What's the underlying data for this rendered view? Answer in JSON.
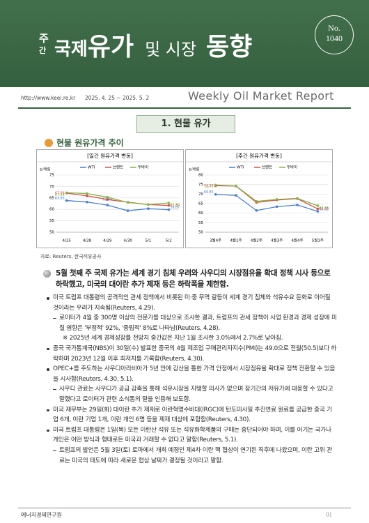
{
  "header": {
    "prefix": [
      "주",
      "간"
    ],
    "title_parts": [
      "국제",
      "유가",
      "및 시장",
      "동향"
    ],
    "badge": [
      "No.",
      "1040"
    ],
    "url": "http://www.keei.re.kr",
    "period": "2025. 4. 25 ~ 2025. 5. 2",
    "english_title": "Weekly Oil Market Report"
  },
  "section": {
    "title": "1. 현물 유가",
    "subtitle": "현물 원유가격 추이"
  },
  "chart_data": [
    {
      "type": "line",
      "title": "[일간 원유가격 변동]",
      "y_label": "$/배럴",
      "categories": [
        "4/25",
        "4/28",
        "4/29",
        "4/30",
        "5/1",
        "5/2"
      ],
      "ylim": [
        50,
        75
      ],
      "yticks": [
        50,
        55,
        60,
        65,
        70,
        75
      ],
      "grid": true,
      "series": [
        {
          "name": "WTI",
          "color": "#4a7fd0",
          "values": [
            63.85,
            63.2,
            61.86,
            59.4,
            60.3,
            59.87
          ],
          "value_labels": [
            "63.85",
            null,
            "61.86",
            null,
            null,
            "59.87"
          ]
        },
        {
          "name": "브렌트",
          "color": "#d0504a",
          "values": [
            67.08,
            65.9,
            64.3,
            63.1,
            62.1,
            61.69
          ],
          "value_labels": [
            "67.08",
            null,
            null,
            null,
            null,
            "61.69"
          ]
        },
        {
          "name": "두바이",
          "color": "#8ab04a",
          "values": [
            67.26,
            66.9,
            65.3,
            63.0,
            62.1,
            62.8
          ],
          "value_labels": [
            "67.26",
            null,
            null,
            null,
            null,
            "62.80"
          ]
        }
      ]
    },
    {
      "type": "line",
      "title": "[주간 원유가격 변동]",
      "y_label": "$/배럴",
      "categories": [
        "3월4주",
        "4월1주",
        "4월2주",
        "4월3주",
        "4월4주",
        "5월1주"
      ],
      "ylim": [
        50,
        80
      ],
      "yticks": [
        50,
        55,
        60,
        65,
        70,
        75,
        80
      ],
      "grid": true,
      "series": [
        {
          "name": "WTI",
          "color": "#4a7fd0",
          "values": [
            69.85,
            69.3,
            61.4,
            63.4,
            64.3,
            60.95
          ],
          "value_labels": [
            "69.85",
            null,
            null,
            null,
            null,
            "60.95"
          ]
        },
        {
          "name": "브렌트",
          "color": "#d0504a",
          "values": [
            74.37,
            74.2,
            65.6,
            66.9,
            67.6,
            62.28
          ],
          "value_labels": [
            "74.37",
            null,
            null,
            null,
            null,
            "62.28"
          ]
        },
        {
          "name": "두바이",
          "color": "#8ab04a",
          "values": [
            74.77,
            74.3,
            66.2,
            67.2,
            67.8,
            63.91
          ],
          "value_labels": [
            "74.77",
            null,
            null,
            null,
            null,
            "63.91"
          ]
        }
      ]
    }
  ],
  "source": "자료: Reuters, 한국석유공사",
  "body": {
    "headline": "5월 첫째 주 국제 유가는 세계 경기 침체 우려와 사우디의 시장점유율 확대 정책 시사 등으로 하락했고, 미국의 대이란 추가 제재 등은 하락폭을 제한함.",
    "items": [
      {
        "text": "미국 트럼프 대통령의 공격적인 관세 정책에서 비롯된 미·중 무역 갈등이 세계 경기 침체와 석유수요 둔화로 이어질 것이라는 우려가 지속됨(Reuters, 4.29).",
        "details": [
          "로이터가 4월 중 300명 이상의 전문가를 대상으로 조사한 결과, 트럼프의 관세 정책이 사업 환경과 경제 성장에 미칠 영향은 '부정적' 92%, '중립적' 8%로 나타남(Reuters, 4.28)."
        ],
        "note": "※ 2025년 세계 경제성장률 전망치 중간값은 지난 1월 조사한 3.0%에서 2.7%로 낮아짐."
      },
      {
        "text": "중국 국가통계국(NBS)이 30일(수) 발표한 중국의 4월 제조업 구매관리자지수(PMI)는 49.0으로 전월(50.5)보다 하락하며 2023년 12월 이후 최저치를 기록함(Reuters, 4.30)."
      },
      {
        "text": "OPEC+를 주도하는 사우디아라비아가 5년 만에 감산을 통한 가격 안정에서 시장점유율 확대로 정책 전환할 수 있음을 시사함(Reuters, 4.30, 5.1).",
        "details": [
          "사우디 관료는 사우디가 공급 감축을 통해 석유시장을 지탱할 의사가 없으며 장기간의 저유가에 대응할 수 있다고 말했다고 로이터가 관련 소식통의 말을 인용해 보도함."
        ]
      },
      {
        "text": "미국 재무부는 29일(화) 대이란 추가 제재로 이란혁명수비대(IRGC)에 탄도미사일 추진연료 원료를 공급한 중국 기업 6개, 이란 기업 1개, 이란 개인 6명 등을 제재 대상에 포함함(Reuters, 4.30)."
      },
      {
        "text": "미국 트럼프 대통령은 1일(목) 모든 이란산 석유 또는 석유화학제품의 구매는 중단되어야 하며, 이를 어기는 국가나 개인은 어떤 방식과 형태로든 미국과 거래할 수 없다고 말함(Reuters, 5.1).",
        "details": [
          "트럼프의 발언은 5월 3일(토) 로마에서 개최 예정인 제4차 이란 핵 협상이 연기된 직후에 나왔으며, 이란 고위 관료는 미국의 태도에 따라 새로운 협상 날짜가 결정될 것이라고 말함."
        ]
      }
    ]
  },
  "footer": {
    "org": "에너지경제연구원",
    "page": "01"
  }
}
